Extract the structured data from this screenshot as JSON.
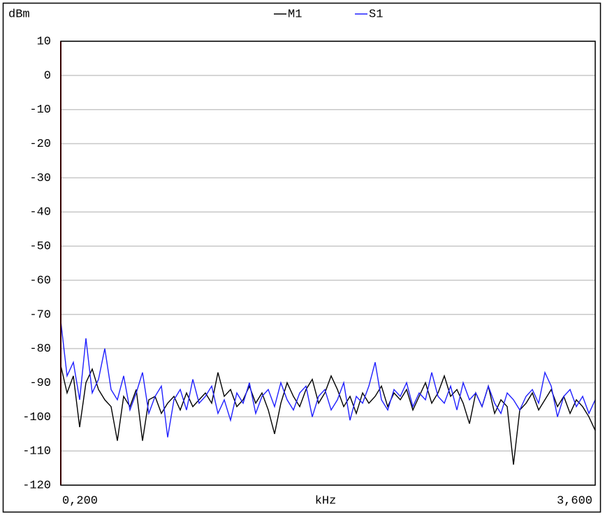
{
  "chart_data": {
    "type": "line",
    "y_label": "dBm",
    "x_label": "kHz",
    "xlim": [
      0.2,
      3.6
    ],
    "xticks": [
      {
        "value": 0.2,
        "label": "0,200"
      },
      {
        "value": 3.6,
        "label": "3,600"
      }
    ],
    "ylim": [
      -120,
      10
    ],
    "yticks": [
      10,
      0,
      -10,
      -20,
      -30,
      -40,
      -50,
      -60,
      -70,
      -80,
      -90,
      -100,
      -110,
      -120
    ],
    "grid": true,
    "x": [
      0.2,
      0.24,
      0.28,
      0.32,
      0.36,
      0.4,
      0.44,
      0.48,
      0.52,
      0.56,
      0.6,
      0.64,
      0.68,
      0.72,
      0.76,
      0.8,
      0.84,
      0.88,
      0.92,
      0.96,
      1.0,
      1.04,
      1.08,
      1.12,
      1.16,
      1.2,
      1.24,
      1.28,
      1.32,
      1.36,
      1.4,
      1.44,
      1.48,
      1.52,
      1.56,
      1.6,
      1.64,
      1.68,
      1.72,
      1.76,
      1.8,
      1.84,
      1.88,
      1.92,
      1.96,
      2.0,
      2.04,
      2.08,
      2.12,
      2.16,
      2.2,
      2.24,
      2.28,
      2.32,
      2.36,
      2.4,
      2.44,
      2.48,
      2.52,
      2.56,
      2.6,
      2.64,
      2.68,
      2.72,
      2.76,
      2.8,
      2.84,
      2.88,
      2.92,
      2.96,
      3.0,
      3.04,
      3.08,
      3.12,
      3.16,
      3.2,
      3.24,
      3.28,
      3.32,
      3.36,
      3.4,
      3.44,
      3.48,
      3.52,
      3.56,
      3.6
    ],
    "series": [
      {
        "name": "M1",
        "color": "#000000",
        "values": [
          -85,
          -93,
          -88,
          -103,
          -90,
          -86,
          -92,
          -95,
          -97,
          -107,
          -94,
          -97,
          -92,
          -107,
          -95,
          -94,
          -99,
          -96,
          -94,
          -98,
          -93,
          -97,
          -95,
          -93,
          -96,
          -87,
          -94,
          -92,
          -97,
          -95,
          -91,
          -96,
          -93,
          -98,
          -105,
          -96,
          -90,
          -94,
          -97,
          -92,
          -89,
          -96,
          -93,
          -88,
          -92,
          -97,
          -94,
          -99,
          -93,
          -96,
          -94,
          -91,
          -97,
          -93,
          -95,
          -92,
          -98,
          -94,
          -90,
          -96,
          -93,
          -88,
          -94,
          -92,
          -96,
          -102,
          -93,
          -97,
          -91,
          -99,
          -95,
          -97,
          -114,
          -98,
          -96,
          -93,
          -98,
          -95,
          -92,
          -97,
          -94,
          -99,
          -95,
          -97,
          -100,
          -104
        ]
      },
      {
        "name": "S1",
        "color": "#2020ff",
        "values": [
          -72,
          -88,
          -84,
          -95,
          -77,
          -93,
          -89,
          -80,
          -92,
          -95,
          -88,
          -98,
          -93,
          -87,
          -99,
          -94,
          -91,
          -106,
          -95,
          -92,
          -98,
          -89,
          -96,
          -94,
          -91,
          -99,
          -95,
          -101,
          -93,
          -96,
          -90,
          -99,
          -94,
          -92,
          -97,
          -90,
          -95,
          -98,
          -93,
          -91,
          -100,
          -94,
          -92,
          -98,
          -95,
          -90,
          -101,
          -94,
          -96,
          -91,
          -84,
          -95,
          -98,
          -92,
          -94,
          -90,
          -97,
          -93,
          -95,
          -87,
          -94,
          -96,
          -91,
          -98,
          -90,
          -95,
          -93,
          -97,
          -91,
          -96,
          -99,
          -93,
          -95,
          -98,
          -94,
          -92,
          -96,
          -87,
          -91,
          -100,
          -94,
          -92,
          -97,
          -94,
          -99,
          -95
        ]
      }
    ]
  }
}
